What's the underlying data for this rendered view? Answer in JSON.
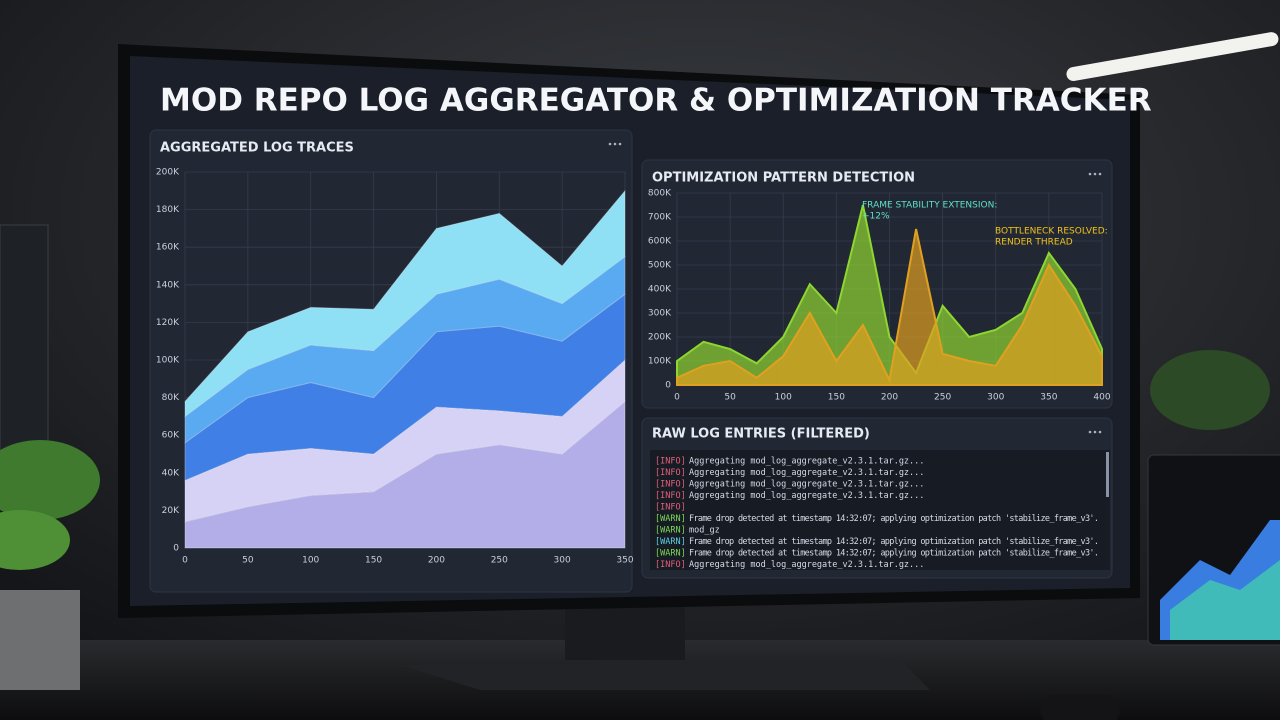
{
  "title": "MOD REPO LOG AGGREGATOR & OPTIMIZATION TRACKER",
  "chart_data": [
    {
      "type": "stacked_area",
      "title": "AGGREGATED LOG TRACES",
      "x": [
        0,
        50,
        100,
        150,
        200,
        250,
        300,
        350
      ],
      "series": [
        {
          "color": "#b4aee8",
          "values": [
            14000,
            22000,
            28000,
            30000,
            50000,
            55000,
            50000,
            78000
          ]
        },
        {
          "color": "#d6d2f6",
          "values": [
            22000,
            28000,
            25000,
            20000,
            25000,
            18000,
            20000,
            22000
          ]
        },
        {
          "color": "#3f7fe6",
          "values": [
            20000,
            30000,
            35000,
            30000,
            40000,
            45000,
            40000,
            35000
          ]
        },
        {
          "color": "#5aaaf2",
          "values": [
            14000,
            15000,
            20000,
            25000,
            20000,
            25000,
            20000,
            20000
          ]
        },
        {
          "color": "#8fdff5",
          "values": [
            8000,
            20000,
            20000,
            22000,
            35000,
            35000,
            20000,
            35000
          ]
        }
      ],
      "xlim": [
        0,
        350
      ],
      "xticks": [
        0,
        50,
        100,
        150,
        200,
        250,
        300,
        350
      ],
      "ylim": [
        0,
        200000
      ],
      "yticks": [
        0,
        {
          "value": 20000,
          "label": "20K"
        },
        {
          "value": 40000,
          "label": "40K"
        },
        {
          "value": 60000,
          "label": "60K"
        },
        {
          "value": 80000,
          "label": "80K"
        },
        {
          "value": 100000,
          "label": "100K"
        },
        {
          "value": 120000,
          "label": "120K"
        },
        {
          "value": 140000,
          "label": "140K"
        },
        {
          "value": 160000,
          "label": "160K"
        },
        {
          "value": 180000,
          "label": "180K"
        },
        {
          "value": 200000,
          "label": "200K"
        }
      ],
      "grid": true
    },
    {
      "type": "area",
      "title": "OPTIMIZATION PATTERN DETECTION",
      "x": [
        0,
        25,
        50,
        75,
        100,
        125,
        150,
        175,
        200,
        225,
        250,
        275,
        300,
        325,
        350,
        375,
        400
      ],
      "series": [
        {
          "color": "#8ed630",
          "values": [
            100000,
            180000,
            150000,
            90000,
            200000,
            420000,
            300000,
            750000,
            200000,
            50000,
            330000,
            200000,
            230000,
            300000,
            550000,
            400000,
            150000
          ]
        },
        {
          "color": "#e0a020",
          "values": [
            30000,
            80000,
            100000,
            30000,
            120000,
            300000,
            100000,
            250000,
            20000,
            650000,
            130000,
            100000,
            80000,
            250000,
            500000,
            330000,
            120000
          ]
        }
      ],
      "annotations": [
        {
          "lines": [
            "FRAME STABILITY EXTENSION:",
            "+12%"
          ],
          "color": "#5fe0c8"
        },
        {
          "lines": [
            "BOTTLENECK RESOLVED:",
            "RENDER THREAD"
          ],
          "color": "#f0c419"
        }
      ],
      "xlim": [
        0,
        400
      ],
      "xticks": [
        0,
        50,
        100,
        150,
        200,
        250,
        300,
        350,
        400
      ],
      "ylim": [
        0,
        800000
      ],
      "yticks": [
        0,
        {
          "value": 100000,
          "label": "100K"
        },
        {
          "value": 200000,
          "label": "200K"
        },
        {
          "value": 300000,
          "label": "300K"
        },
        {
          "value": 400000,
          "label": "400K"
        },
        {
          "value": 500000,
          "label": "500K"
        },
        {
          "value": 600000,
          "label": "600K"
        },
        {
          "value": 700000,
          "label": "700K"
        },
        {
          "value": 800000,
          "label": "800K"
        }
      ],
      "grid": true
    }
  ],
  "log_panel": {
    "title": "RAW LOG ENTRIES (FILTERED)",
    "entries": [
      {
        "tag": "[INFO]",
        "text": "Aggregating mod_log_aggregate_v2.3.1.tar.gz...",
        "color": "#e0607a"
      },
      {
        "tag": "[INFO]",
        "text": "Aggregating mod_log_aggregate_v2.3.1.tar.gz...",
        "color": "#e0607a"
      },
      {
        "tag": "[INFO]",
        "text": "Aggregating mod_log_aggregate_v2.3.1.tar.gz...",
        "color": "#e0607a"
      },
      {
        "tag": "[INFO]",
        "text": "Aggregating mod_log_aggregate_v2.3.1.tar.gz...",
        "color": "#e0607a"
      },
      {
        "tag": "[INFO]",
        "text": "",
        "color": "#e0607a"
      },
      {
        "tag": "[WARN]",
        "text": "Frame drop detected at timestamp 14:32:07; applying optimization patch 'stabilize_frame_v3'.",
        "color": "#7ed957"
      },
      {
        "tag": "[WARN]",
        "text": "mod_gz",
        "color": "#7ed957"
      },
      {
        "tag": "[WARN]",
        "text": "Frame drop detected at timestamp 14:32:07; applying optimization patch 'stabilize_frame_v3'.",
        "color": "#5fd0e0"
      },
      {
        "tag": "[WARN]",
        "text": "Frame drop detected at timestamp 14:32:07; applying optimization patch 'stabilize_frame_v3'.",
        "color": "#7ed957"
      },
      {
        "tag": "[INFO]",
        "text": "Aggregating mod_log_aggregate_v2.3.1.tar.gz...",
        "color": "#e0607a"
      }
    ]
  }
}
